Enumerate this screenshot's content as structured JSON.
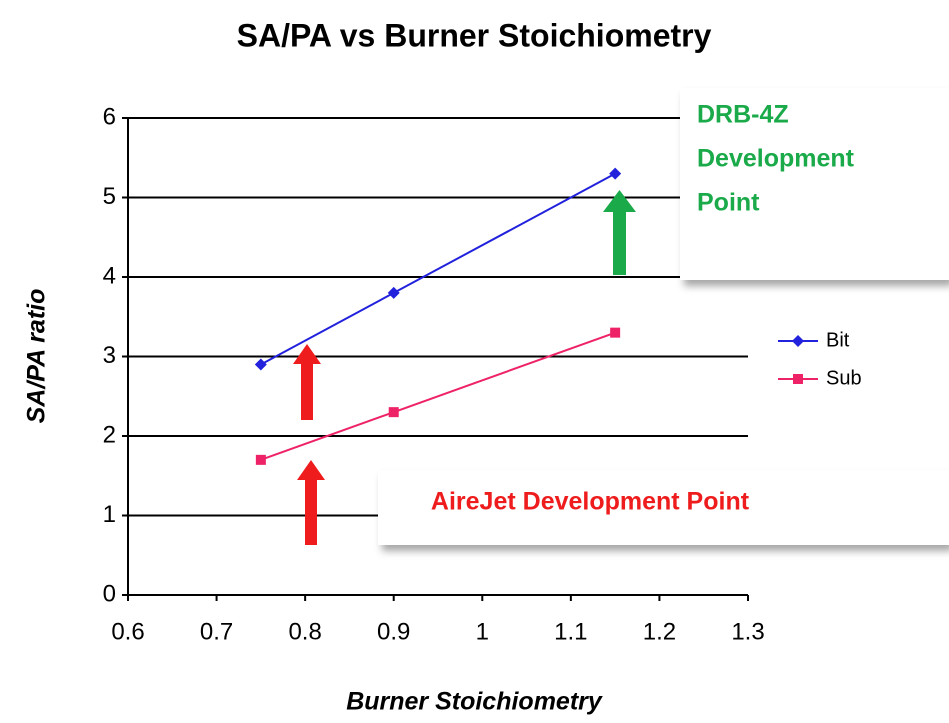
{
  "chart_data": {
    "type": "line",
    "title": "SA/PA vs Burner Stoichiometry",
    "x_label": "Burner Stoichiometry",
    "y_label": "SA/PA ratio",
    "series": [
      {
        "name": "Bit",
        "color": "#2222dd",
        "marker": "diamond",
        "x": [
          0.75,
          0.9,
          1.15
        ],
        "values": [
          2.9,
          3.8,
          5.3
        ]
      },
      {
        "name": "Sub",
        "color": "#ee2266",
        "marker": "square",
        "x": [
          0.75,
          0.9,
          1.15
        ],
        "values": [
          1.7,
          2.3,
          3.3
        ]
      }
    ],
    "xlim": [
      0.6,
      1.3
    ],
    "xticks": [
      0.6,
      0.7,
      0.8,
      0.9,
      1,
      1.1,
      1.2,
      1.3
    ],
    "ylim": [
      0,
      6
    ],
    "yticks": [
      0,
      1,
      2,
      3,
      4,
      5,
      6
    ],
    "grid": true,
    "legend": "right",
    "annotations": [
      {
        "lines": [
          "DRB-4Z",
          "Development",
          "Point"
        ],
        "color": "#1aaa4a"
      },
      {
        "lines": [
          "AireJet Development Point"
        ],
        "color": "#ee1c1c"
      }
    ]
  }
}
